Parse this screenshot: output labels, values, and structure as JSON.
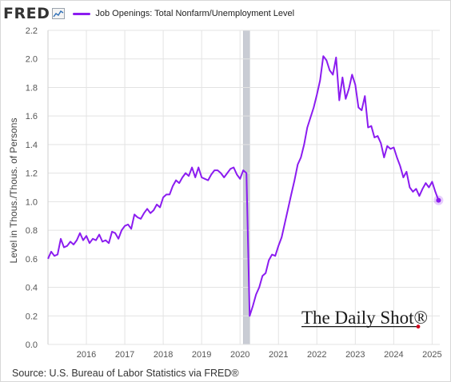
{
  "header": {
    "logo_text": "FRED",
    "logo_icon": "fred-chart-icon",
    "legend_label": "Job Openings: Total Nonfarm/Unemployment Level"
  },
  "source": "Source: U.S. Bureau of Labor Statistics via FRED®",
  "watermark": "The Daily Shot®",
  "colors": {
    "series": "#8b1cf0",
    "recession": "#c9ccd4",
    "grid": "#e3e3e3",
    "axis_text": "#555555",
    "watermark_dot": "#d0021b"
  },
  "chart_data": {
    "type": "line",
    "title": "",
    "xlabel": "",
    "ylabel": "Level in Thous./Thous. of Persons",
    "ylim": [
      0.0,
      2.2
    ],
    "y_ticks": [
      "0.0",
      "0.2",
      "0.4",
      "0.6",
      "0.8",
      "1.0",
      "1.2",
      "1.4",
      "1.6",
      "1.8",
      "2.0",
      "2.2"
    ],
    "x_ticks": [
      "2016",
      "2017",
      "2018",
      "2019",
      "2020",
      "2021",
      "2022",
      "2023",
      "2024",
      "2025"
    ],
    "grid": true,
    "legend_placement": "top",
    "shaded_regions": [
      {
        "label": "recession",
        "start": "2020-02",
        "end": "2020-04"
      }
    ],
    "series": [
      {
        "name": "Job Openings: Total Nonfarm/Unemployment Level",
        "points": [
          [
            "2015-01",
            0.6
          ],
          [
            "2015-02",
            0.65
          ],
          [
            "2015-03",
            0.62
          ],
          [
            "2015-04",
            0.63
          ],
          [
            "2015-05",
            0.74
          ],
          [
            "2015-06",
            0.68
          ],
          [
            "2015-07",
            0.69
          ],
          [
            "2015-08",
            0.72
          ],
          [
            "2015-09",
            0.7
          ],
          [
            "2015-10",
            0.73
          ],
          [
            "2015-11",
            0.78
          ],
          [
            "2015-12",
            0.73
          ],
          [
            "2016-01",
            0.76
          ],
          [
            "2016-02",
            0.71
          ],
          [
            "2016-03",
            0.74
          ],
          [
            "2016-04",
            0.73
          ],
          [
            "2016-05",
            0.77
          ],
          [
            "2016-06",
            0.72
          ],
          [
            "2016-07",
            0.73
          ],
          [
            "2016-08",
            0.71
          ],
          [
            "2016-09",
            0.79
          ],
          [
            "2016-10",
            0.78
          ],
          [
            "2016-11",
            0.74
          ],
          [
            "2016-12",
            0.8
          ],
          [
            "2017-01",
            0.83
          ],
          [
            "2017-02",
            0.84
          ],
          [
            "2017-03",
            0.81
          ],
          [
            "2017-04",
            0.91
          ],
          [
            "2017-05",
            0.89
          ],
          [
            "2017-06",
            0.88
          ],
          [
            "2017-07",
            0.92
          ],
          [
            "2017-08",
            0.95
          ],
          [
            "2017-09",
            0.92
          ],
          [
            "2017-10",
            0.94
          ],
          [
            "2017-11",
            0.98
          ],
          [
            "2017-12",
            0.96
          ],
          [
            "2018-01",
            1.03
          ],
          [
            "2018-02",
            1.05
          ],
          [
            "2018-03",
            1.05
          ],
          [
            "2018-04",
            1.11
          ],
          [
            "2018-05",
            1.15
          ],
          [
            "2018-06",
            1.13
          ],
          [
            "2018-07",
            1.17
          ],
          [
            "2018-08",
            1.2
          ],
          [
            "2018-09",
            1.18
          ],
          [
            "2018-10",
            1.24
          ],
          [
            "2018-11",
            1.17
          ],
          [
            "2018-12",
            1.24
          ],
          [
            "2019-01",
            1.17
          ],
          [
            "2019-02",
            1.16
          ],
          [
            "2019-03",
            1.15
          ],
          [
            "2019-04",
            1.19
          ],
          [
            "2019-05",
            1.22
          ],
          [
            "2019-06",
            1.22
          ],
          [
            "2019-07",
            1.2
          ],
          [
            "2019-08",
            1.17
          ],
          [
            "2019-09",
            1.2
          ],
          [
            "2019-10",
            1.23
          ],
          [
            "2019-11",
            1.24
          ],
          [
            "2019-12",
            1.19
          ],
          [
            "2020-01",
            1.16
          ],
          [
            "2020-02",
            1.22
          ],
          [
            "2020-03",
            1.2
          ],
          [
            "2020-04",
            0.2
          ],
          [
            "2020-05",
            0.27
          ],
          [
            "2020-06",
            0.35
          ],
          [
            "2020-07",
            0.4
          ],
          [
            "2020-08",
            0.48
          ],
          [
            "2020-09",
            0.5
          ],
          [
            "2020-10",
            0.59
          ],
          [
            "2020-11",
            0.63
          ],
          [
            "2020-12",
            0.62
          ],
          [
            "2021-01",
            0.69
          ],
          [
            "2021-02",
            0.75
          ],
          [
            "2021-03",
            0.85
          ],
          [
            "2021-04",
            0.95
          ],
          [
            "2021-05",
            1.05
          ],
          [
            "2021-06",
            1.15
          ],
          [
            "2021-07",
            1.26
          ],
          [
            "2021-08",
            1.31
          ],
          [
            "2021-09",
            1.4
          ],
          [
            "2021-10",
            1.52
          ],
          [
            "2021-11",
            1.59
          ],
          [
            "2021-12",
            1.66
          ],
          [
            "2022-01",
            1.75
          ],
          [
            "2022-02",
            1.85
          ],
          [
            "2022-03",
            2.02
          ],
          [
            "2022-04",
            1.99
          ],
          [
            "2022-05",
            1.92
          ],
          [
            "2022-06",
            1.89
          ],
          [
            "2022-07",
            2.01
          ],
          [
            "2022-08",
            1.71
          ],
          [
            "2022-09",
            1.87
          ],
          [
            "2022-10",
            1.72
          ],
          [
            "2022-11",
            1.79
          ],
          [
            "2022-12",
            1.89
          ],
          [
            "2023-01",
            1.82
          ],
          [
            "2023-02",
            1.66
          ],
          [
            "2023-03",
            1.64
          ],
          [
            "2023-04",
            1.74
          ],
          [
            "2023-05",
            1.52
          ],
          [
            "2023-06",
            1.53
          ],
          [
            "2023-07",
            1.45
          ],
          [
            "2023-08",
            1.46
          ],
          [
            "2023-09",
            1.41
          ],
          [
            "2023-10",
            1.31
          ],
          [
            "2023-11",
            1.39
          ],
          [
            "2023-12",
            1.37
          ],
          [
            "2024-01",
            1.38
          ],
          [
            "2024-02",
            1.31
          ],
          [
            "2024-03",
            1.25
          ],
          [
            "2024-04",
            1.17
          ],
          [
            "2024-05",
            1.21
          ],
          [
            "2024-06",
            1.1
          ],
          [
            "2024-07",
            1.07
          ],
          [
            "2024-08",
            1.09
          ],
          [
            "2024-09",
            1.04
          ],
          [
            "2024-10",
            1.09
          ],
          [
            "2024-11",
            1.13
          ],
          [
            "2024-12",
            1.1
          ],
          [
            "2025-01",
            1.14
          ],
          [
            "2025-02",
            1.07
          ],
          [
            "2025-03",
            1.01
          ]
        ]
      }
    ]
  }
}
